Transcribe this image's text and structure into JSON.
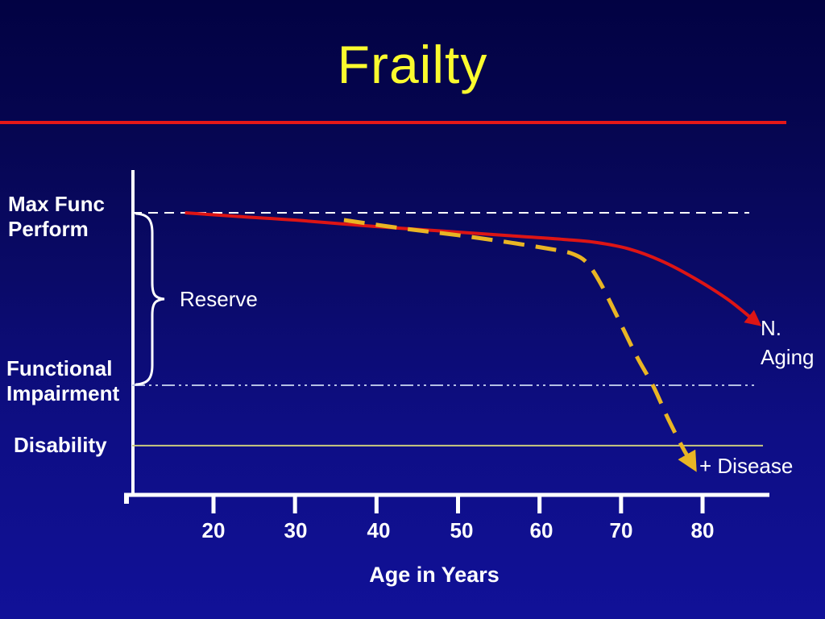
{
  "slide": {
    "title": "Frailty"
  },
  "chart_data": {
    "type": "line",
    "title": "Frailty",
    "xlabel": "Age in Years",
    "ylabel": "",
    "x_ticks": [
      "20",
      "30",
      "40",
      "50",
      "60",
      "70",
      "80"
    ],
    "x_range": [
      10,
      87
    ],
    "y_range": [
      0,
      110
    ],
    "grid": false,
    "legend_position": "inline-annotations",
    "reference_lines": [
      {
        "name": "max-functional-performance",
        "value": 100,
        "style": "dashed",
        "color": "#ffffff"
      },
      {
        "name": "functional-impairment",
        "value": 38.5,
        "style": "dash-dot-dot",
        "color": "#b4bfe4"
      },
      {
        "name": "disability",
        "value": 17,
        "style": "solid",
        "color": "#c9c97e"
      }
    ],
    "series": [
      {
        "name": "N. Aging",
        "style": "solid",
        "color": "#dd1515",
        "points": [
          [
            16.5,
            100
          ],
          [
            23.5,
            98.6
          ],
          [
            30,
            97.4
          ],
          [
            40,
            95.1
          ],
          [
            50,
            93.1
          ],
          [
            57,
            91.7
          ],
          [
            63,
            90.5
          ],
          [
            67,
            89.4
          ],
          [
            71,
            87.1
          ],
          [
            75,
            82.8
          ],
          [
            79,
            76.7
          ],
          [
            83,
            69.3
          ],
          [
            86,
            62.4
          ]
        ]
      },
      {
        "name": "+ Disease",
        "style": "dashed",
        "color": "#e9b524",
        "points": [
          [
            36,
            97.4
          ],
          [
            43,
            94.5
          ],
          [
            50,
            92.0
          ],
          [
            57,
            89.1
          ],
          [
            62.5,
            86.5
          ],
          [
            64.3,
            85.1
          ],
          [
            65.8,
            82.2
          ],
          [
            67.4,
            75.3
          ],
          [
            69.4,
            63.8
          ],
          [
            71.9,
            48.9
          ],
          [
            73.9,
            38.5
          ],
          [
            75.8,
            26.4
          ],
          [
            77.6,
            16.1
          ],
          [
            78.3,
            12.6
          ]
        ]
      }
    ],
    "labels": {
      "max_func": [
        "Max Func",
        "Perform"
      ],
      "functional_impairment": [
        "Functional",
        "Impairment"
      ],
      "disability": "Disability",
      "reserve": "Reserve",
      "n_aging": [
        "N.",
        "Aging"
      ],
      "disease": "+ Disease"
    }
  }
}
